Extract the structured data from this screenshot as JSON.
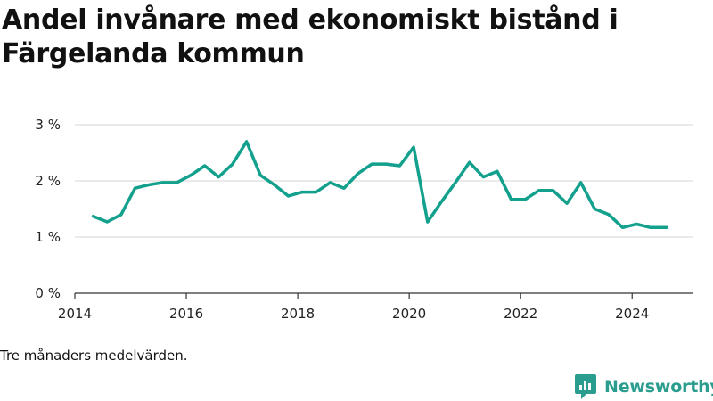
{
  "title": "Andel invånare med ekonomiskt bistånd i Färgelanda kommun",
  "caption": "Tre månaders medelvärden.",
  "brand": {
    "name": "Newsworthy",
    "logo_icon": "newsworthy-logo-icon"
  },
  "colors": {
    "line": "#13a08d",
    "grid": "#dddddd",
    "axis": "#333333",
    "brand": "#2a9d8f"
  },
  "chart_data": {
    "type": "line",
    "title": "Andel invånare med ekonomiskt bistånd i Färgelanda kommun",
    "xlabel": "",
    "ylabel": "",
    "xlim": [
      2014,
      2025.1
    ],
    "ylim": [
      0,
      3
    ],
    "x_ticks": [
      2014,
      2016,
      2018,
      2020,
      2022,
      2024
    ],
    "x_tick_labels": [
      "2014",
      "2016",
      "2018",
      "2020",
      "2022",
      "2024"
    ],
    "y_ticks": [
      0,
      1,
      2,
      3
    ],
    "y_tick_labels": [
      "0 %",
      "1 %",
      "2 %",
      "3 %"
    ],
    "grid": true,
    "series": [
      {
        "x": [
          2014.33,
          2014.58,
          2014.83,
          2015.08,
          2015.33,
          2015.58,
          2015.83,
          2016.08,
          2016.33,
          2016.58,
          2016.83,
          2017.08,
          2017.33,
          2017.58,
          2017.83,
          2018.08,
          2018.33,
          2018.58,
          2018.83,
          2019.08,
          2019.33,
          2019.58,
          2019.83,
          2020.08,
          2020.33,
          2020.58,
          2020.83,
          2021.08,
          2021.33,
          2021.58,
          2021.83,
          2022.08,
          2022.33,
          2022.58,
          2022.83,
          2023.08,
          2023.33,
          2023.58,
          2023.83,
          2024.08,
          2024.33,
          2024.62
        ],
        "values": [
          1.37,
          1.27,
          1.4,
          1.87,
          1.93,
          1.97,
          1.97,
          2.1,
          2.27,
          2.07,
          2.3,
          2.7,
          2.1,
          1.93,
          1.73,
          1.8,
          1.8,
          1.97,
          1.87,
          2.13,
          2.3,
          2.3,
          2.27,
          2.6,
          1.27,
          1.63,
          1.97,
          2.33,
          2.07,
          2.17,
          1.67,
          1.67,
          1.83,
          1.83,
          1.6,
          1.97,
          1.5,
          1.4,
          1.17,
          1.23,
          1.17,
          1.17
        ]
      }
    ]
  }
}
